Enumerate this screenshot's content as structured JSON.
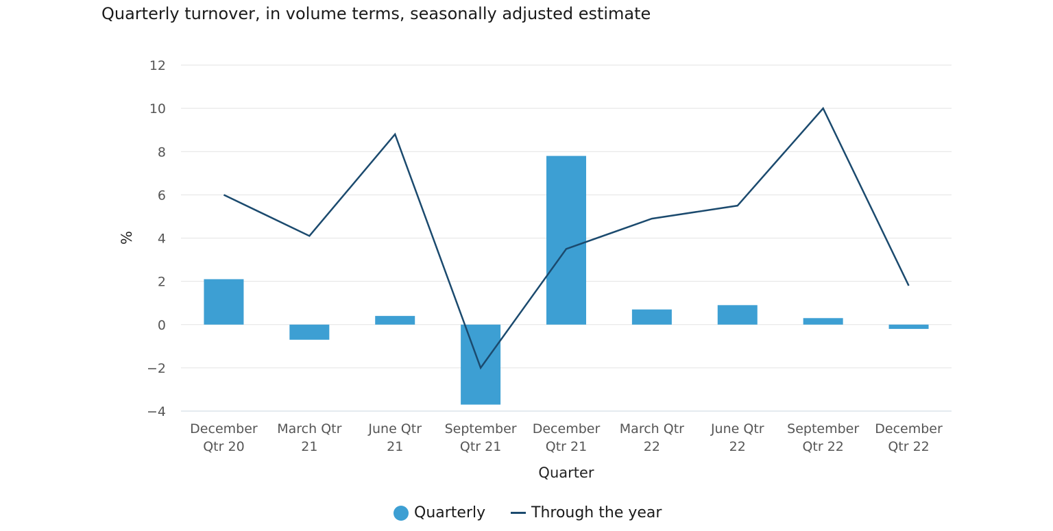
{
  "title": "Quarterly turnover, in volume terms, seasonally adjusted estimate",
  "chart_data": {
    "type": "bar",
    "title": "Quarterly turnover, in volume terms, seasonally adjusted estimate",
    "xlabel": "Quarter",
    "ylabel": "%",
    "ylim": [
      -4,
      12
    ],
    "yticks": [
      -4,
      -2,
      0,
      2,
      4,
      6,
      8,
      10,
      12
    ],
    "ytick_labels": [
      "−4",
      "−2",
      "0",
      "2",
      "4",
      "6",
      "8",
      "10",
      "12"
    ],
    "grid": true,
    "legend_position": "bottom",
    "categories": [
      [
        "December",
        "Qtr 20"
      ],
      [
        "March Qtr",
        "21"
      ],
      [
        "June Qtr",
        "21"
      ],
      [
        "September",
        "Qtr 21"
      ],
      [
        "December",
        "Qtr 21"
      ],
      [
        "March Qtr",
        "22"
      ],
      [
        "June Qtr",
        "22"
      ],
      [
        "September",
        "Qtr 22"
      ],
      [
        "December",
        "Qtr 22"
      ]
    ],
    "series": [
      {
        "name": "Quarterly",
        "type": "bar",
        "color": "#3d9fd3",
        "values": [
          2.1,
          -0.7,
          0.4,
          -3.7,
          7.8,
          0.7,
          0.9,
          0.3,
          -0.2
        ]
      },
      {
        "name": "Through the year",
        "type": "line",
        "color": "#1b4a6e",
        "values": [
          6.0,
          4.1,
          8.8,
          -2.0,
          3.5,
          4.9,
          5.5,
          10.0,
          1.8
        ]
      }
    ]
  }
}
